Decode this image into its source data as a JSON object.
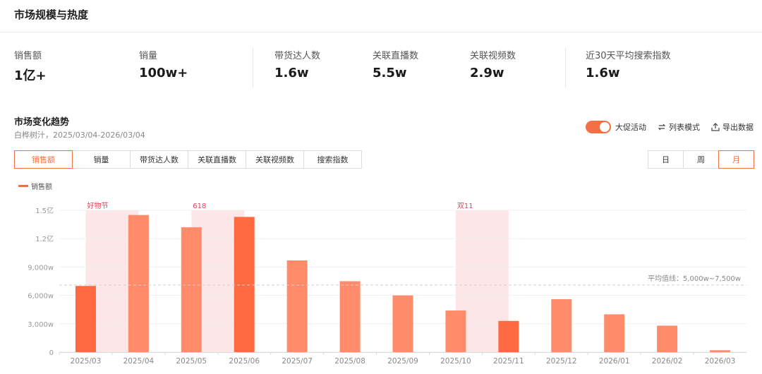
{
  "header": {
    "title": "市场规模与热度"
  },
  "metrics": [
    {
      "label": "销售额",
      "value": "1亿+"
    },
    {
      "label": "销量",
      "value": "100w+"
    },
    {
      "label": "带货达人数",
      "value": "1.6w"
    },
    {
      "label": "关联直播数",
      "value": "5.5w"
    },
    {
      "label": "关联视频数",
      "value": "2.9w"
    },
    {
      "label": "近30天平均搜索指数",
      "value": "1.6w"
    }
  ],
  "trend": {
    "title": "市场变化趋势",
    "subtitle": "白桦树汁，2025/03/04-2026/03/04"
  },
  "toolbar": {
    "promo_label": "大促活动",
    "list_mode_label": "列表模式",
    "export_label": "导出数据"
  },
  "tabs": [
    "销售额",
    "销量",
    "带货达人数",
    "关联直播数",
    "关联视频数",
    "搜索指数"
  ],
  "active_tab": "销售额",
  "periods": [
    "日",
    "周",
    "月"
  ],
  "active_period": "月",
  "colors": {
    "accent": "#f27044",
    "bar_light": "#ff8b6a",
    "bar_dark": "#ff6a43",
    "promo_band": "#fce3e6"
  },
  "chart_data": {
    "type": "bar",
    "legend": "销售额",
    "categories": [
      "2025/03",
      "2025/04",
      "2025/05",
      "2025/06",
      "2025/07",
      "2025/08",
      "2025/09",
      "2025/10",
      "2025/11",
      "2025/12",
      "2026/01",
      "2026/02",
      "2026/03"
    ],
    "values": [
      7000,
      14500,
      13200,
      14300,
      9700,
      7500,
      6000,
      4400,
      3300,
      5600,
      4000,
      2800,
      200
    ],
    "highlighted": [
      true,
      false,
      false,
      true,
      false,
      false,
      false,
      false,
      true,
      false,
      false,
      false,
      false
    ],
    "ylim": [
      0,
      15000
    ],
    "yticks": [
      0,
      3000,
      6000,
      9000,
      12000,
      15000
    ],
    "ytick_labels": [
      "0",
      "3,000w",
      "6,000w",
      "9,000w",
      "1.2亿",
      "1.5亿"
    ],
    "y_unit": "w",
    "reference_line": {
      "value": 7100,
      "label": "平均值线：5,000w~7,500w"
    },
    "promo_bands": [
      {
        "label": "好物节",
        "from": "2025/03",
        "to": "2025/04"
      },
      {
        "label": "618",
        "from": "2025/05",
        "to": "2025/06"
      },
      {
        "label": "双11",
        "from": "2025/10",
        "to": "2025/11"
      }
    ]
  }
}
